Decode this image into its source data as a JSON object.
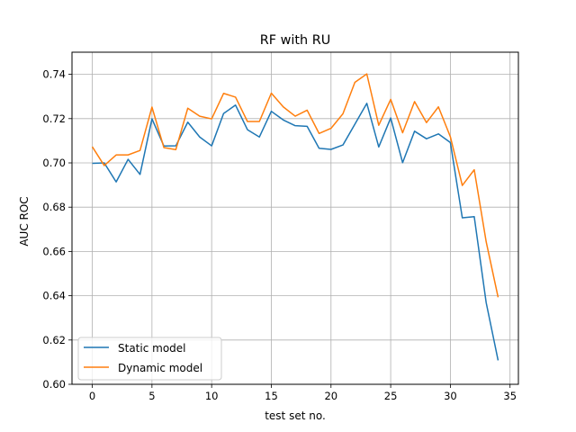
{
  "chart_data": {
    "type": "line",
    "title": "RF with RU",
    "xlabel": "test set no.",
    "ylabel": "AUC ROC",
    "xlim": [
      -1.7,
      35.7
    ],
    "ylim": [
      0.6,
      0.75
    ],
    "xticks": [
      0,
      5,
      10,
      15,
      20,
      25,
      30,
      35
    ],
    "yticks": [
      0.6,
      0.62,
      0.64,
      0.66,
      0.68,
      0.7,
      0.72,
      0.74
    ],
    "xtick_labels": [
      "0",
      "5",
      "10",
      "15",
      "20",
      "25",
      "30",
      "35"
    ],
    "ytick_labels": [
      "0.60",
      "0.62",
      "0.64",
      "0.66",
      "0.68",
      "0.70",
      "0.72",
      "0.74"
    ],
    "grid": true,
    "legend_position": "lower-left",
    "x": [
      0,
      1,
      2,
      3,
      4,
      5,
      6,
      7,
      8,
      9,
      10,
      11,
      12,
      13,
      14,
      15,
      16,
      17,
      18,
      19,
      20,
      21,
      22,
      23,
      24,
      25,
      26,
      27,
      28,
      29,
      30,
      31,
      32,
      33,
      34
    ],
    "series": [
      {
        "name": "Static model",
        "color": "#1f77b4",
        "values": [
          0.6998,
          0.7,
          0.6914,
          0.7016,
          0.6948,
          0.7199,
          0.7076,
          0.7077,
          0.7184,
          0.7117,
          0.7077,
          0.7223,
          0.7261,
          0.715,
          0.7117,
          0.7233,
          0.7194,
          0.7168,
          0.7165,
          0.7066,
          0.7061,
          0.7081,
          0.7175,
          0.7269,
          0.7072,
          0.7203,
          0.7001,
          0.7143,
          0.7109,
          0.7131,
          0.7092,
          0.6752,
          0.6757,
          0.6369,
          0.6108
        ]
      },
      {
        "name": "Dynamic model",
        "color": "#ff7f0e",
        "values": [
          0.7073,
          0.6988,
          0.7036,
          0.7036,
          0.7056,
          0.7252,
          0.7069,
          0.706,
          0.7247,
          0.7211,
          0.7199,
          0.7314,
          0.7297,
          0.7187,
          0.7187,
          0.7315,
          0.7253,
          0.7211,
          0.7238,
          0.7133,
          0.7156,
          0.7222,
          0.7364,
          0.7402,
          0.717,
          0.7287,
          0.7136,
          0.7277,
          0.7182,
          0.7253,
          0.7118,
          0.6898,
          0.6969,
          0.6644,
          0.6393
        ]
      }
    ]
  }
}
